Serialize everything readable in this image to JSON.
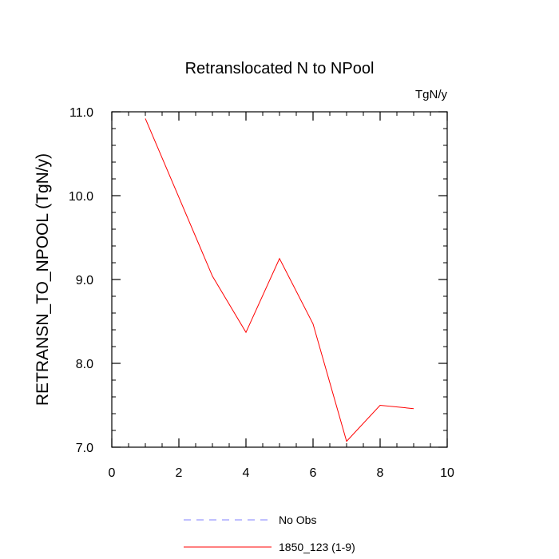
{
  "chart_data": {
    "type": "line",
    "title": "Retranslocated N to NPool",
    "units_label": "TgN/y",
    "xlabel": "",
    "ylabel": "RETRANSN_TO_NPOOL  (TgN/y)",
    "xlim": [
      0,
      10
    ],
    "ylim": [
      7.0,
      11.0
    ],
    "x_ticks": [
      0,
      2,
      4,
      6,
      8,
      10
    ],
    "x_tick_labels": [
      "0",
      "2",
      "4",
      "6",
      "8",
      "10"
    ],
    "y_ticks": [
      7.0,
      8.0,
      9.0,
      10.0,
      11.0
    ],
    "y_tick_labels": [
      "7.0",
      "8.0",
      "9.0",
      "10.0",
      "11.0"
    ],
    "grid": false,
    "legend_position": "bottom",
    "series": [
      {
        "name": "1850_123 (1-9)",
        "color": "#ff0000",
        "dash": "solid",
        "x": [
          1,
          2,
          3,
          4,
          5,
          6,
          7,
          8,
          9
        ],
        "y": [
          10.92,
          9.98,
          9.04,
          8.37,
          9.25,
          8.47,
          7.07,
          7.5,
          7.46
        ]
      }
    ],
    "legend": [
      {
        "label": "No Obs",
        "color": "#8080ff",
        "dash": "dashed"
      },
      {
        "label": "1850_123 (1-9)",
        "color": "#ff0000",
        "dash": "solid"
      }
    ]
  }
}
